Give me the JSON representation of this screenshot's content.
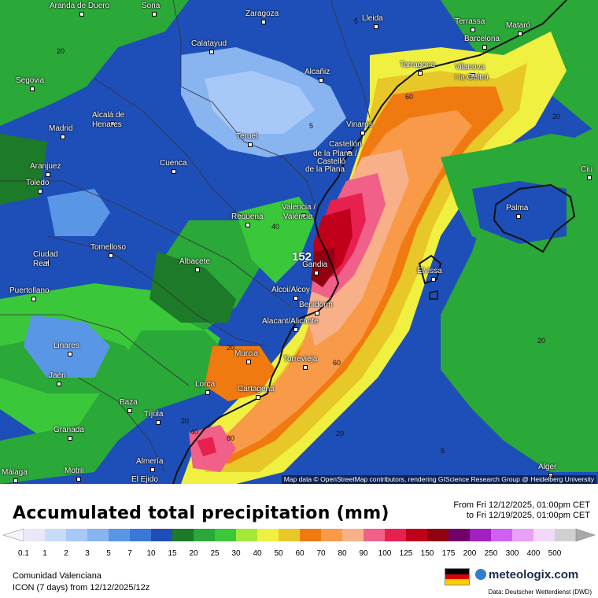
{
  "title": "Accumulated total precipitation (mm)",
  "period": {
    "from": "From Fri 12/12/2025, 01:00pm CET",
    "to": "to Fri 12/19/2025, 01:00pm CET"
  },
  "region": "Comunidad Valenciana",
  "model": "ICON (7 days)  from  12/12/2025/12z",
  "brand": "meteologix.com",
  "data_source": "Data: Deutscher Wetterdienst  (DWD)",
  "attribution": "Map data © OpenStreetMap contributors, rendering GIScience Research Group @ Heidelberg University",
  "max_value_label": "152",
  "legend": {
    "values": [
      "0.1",
      "1",
      "2",
      "3",
      "5",
      "7",
      "10",
      "15",
      "20",
      "25",
      "30",
      "40",
      "50",
      "60",
      "70",
      "80",
      "90",
      "100",
      "125",
      "150",
      "175",
      "200",
      "250",
      "300",
      "400",
      "500"
    ],
    "colors": [
      "#e8e8f8",
      "#c8dcfa",
      "#a8c8f8",
      "#88b4f0",
      "#5a96e6",
      "#3a78d8",
      "#1e4fb8",
      "#1c7a28",
      "#2aa838",
      "#3ac83a",
      "#a6e83a",
      "#f0f040",
      "#e8c828",
      "#f07a10",
      "#f89a48",
      "#f8b088",
      "#f06088",
      "#e82050",
      "#c0001a",
      "#900010",
      "#70006a",
      "#a020c0",
      "#d060f0",
      "#e8a0f8",
      "#f4d8fc",
      "#d0d0d0"
    ]
  },
  "cities": [
    {
      "name": "Aranda de Duero",
      "icon": "city-dot"
    },
    {
      "name": "Soria",
      "icon": "city-dot"
    },
    {
      "name": "Zaragoza",
      "icon": "city-dot"
    },
    {
      "name": "Lleida",
      "icon": "city-dot"
    },
    {
      "name": "Terrassa",
      "icon": "city-dot"
    },
    {
      "name": "Mataró",
      "icon": "city-dot"
    },
    {
      "name": "Barcelona",
      "icon": "city-dot"
    },
    {
      "name": "Calatayud",
      "icon": "city-dot"
    },
    {
      "name": "Tarragona",
      "icon": "city-dot"
    },
    {
      "name": "Vilanova",
      "icon": "city-dot"
    },
    {
      "name": "i la Geltrú",
      "icon": "none"
    },
    {
      "name": "Segovia",
      "icon": "city-dot"
    },
    {
      "name": "Alcañiz",
      "icon": "city-dot"
    },
    {
      "name": "Madrid",
      "icon": "city-dot"
    },
    {
      "name": "Alcalá de",
      "icon": "city-dot"
    },
    {
      "name": "Henares",
      "icon": "none"
    },
    {
      "name": "Vinaròs",
      "icon": "city-dot"
    },
    {
      "name": "Teruel",
      "icon": "city-dot"
    },
    {
      "name": "Castellón",
      "icon": "city-dot"
    },
    {
      "name": "de la Plana /",
      "icon": "none"
    },
    {
      "name": "Castelló",
      "icon": "none"
    },
    {
      "name": "de la Plana",
      "icon": "none"
    },
    {
      "name": "Aranjuez",
      "icon": "city-dot"
    },
    {
      "name": "Cuenca",
      "icon": "city-dot"
    },
    {
      "name": "Toledo",
      "icon": "city-dot"
    },
    {
      "name": "Valencia /",
      "icon": "city-dot"
    },
    {
      "name": "València",
      "icon": "none"
    },
    {
      "name": "Requena",
      "icon": "city-dot"
    },
    {
      "name": "Palma",
      "icon": "city-dot"
    },
    {
      "name": "Ciu",
      "icon": "city-dot"
    },
    {
      "name": "Tomelloso",
      "icon": "city-dot"
    },
    {
      "name": "Ciudad",
      "icon": "city-dot"
    },
    {
      "name": "Real",
      "icon": "none"
    },
    {
      "name": "Albacete",
      "icon": "city-dot"
    },
    {
      "name": "Gandia",
      "icon": "city-dot"
    },
    {
      "name": "Eivissa",
      "icon": "city-dot"
    },
    {
      "name": "Puertollano",
      "icon": "city-dot"
    },
    {
      "name": "Alcoi/Alcoy",
      "icon": "city-dot"
    },
    {
      "name": "Benidorm",
      "icon": "city-dot"
    },
    {
      "name": "Alacant/Alicante",
      "icon": "city-dot"
    },
    {
      "name": "Linares",
      "icon": "city-dot"
    },
    {
      "name": "Murcia",
      "icon": "city-dot"
    },
    {
      "name": "Torrevieja",
      "icon": "city-dot"
    },
    {
      "name": "Jaén",
      "icon": "city-dot"
    },
    {
      "name": "Lorca",
      "icon": "city-dot"
    },
    {
      "name": "Cartagena",
      "icon": "city-dot"
    },
    {
      "name": "Baza",
      "icon": "city-dot"
    },
    {
      "name": "Tíjola",
      "icon": "city-dot"
    },
    {
      "name": "Granada",
      "icon": "city-dot"
    },
    {
      "name": "Almería",
      "icon": "city-dot"
    },
    {
      "name": "Motril",
      "icon": "city-dot"
    },
    {
      "name": "El Ejido",
      "icon": "city-dot"
    },
    {
      "name": "Málaga",
      "icon": "city-dot"
    },
    {
      "name": "Alger",
      "icon": "city-dot"
    }
  ],
  "contour_labels": [
    "20",
    "5",
    "5",
    "20",
    "60",
    "40",
    "20",
    "60",
    "20",
    "40",
    "80",
    "20",
    "20",
    "5"
  ]
}
